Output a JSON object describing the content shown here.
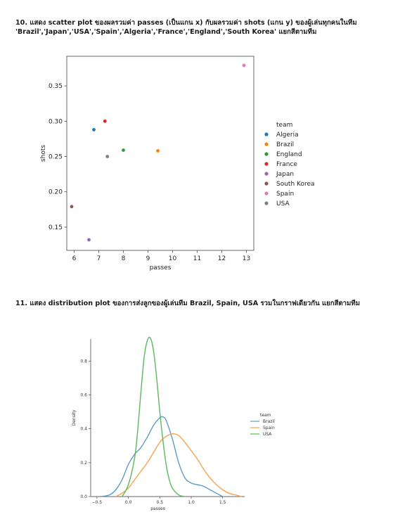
{
  "questions": {
    "q10": "10. แสดง scatter plot ของผลรวมค่า passes (เป็นแกน x) กับผลรวมค่า shots (แกน y) ของผู้เล่นทุกคนในทีม 'Brazil','Japan','USA','Spain','Algeria','France','England','South Korea' แยกสีตามทีม",
    "q11": "11. แสดง distribution plot ของการส่งลูกของผู้เล่นทีม Brazil, Spain, USA รวมในกราฟเดียวกัน แยกสีตามทีม"
  },
  "chart_data": [
    {
      "type": "scatter",
      "xlabel": "passes",
      "ylabel": "shots",
      "xlim": [
        5.7,
        13.3
      ],
      "ylim": [
        0.117,
        0.392
      ],
      "xticks": [
        6,
        7,
        8,
        9,
        10,
        11,
        12,
        13
      ],
      "yticks": [
        0.15,
        0.2,
        0.25,
        0.3,
        0.35
      ],
      "ytick_labels": [
        "0.15",
        "0.20",
        "0.25",
        "0.30",
        "0.35"
      ],
      "legend_title": "team",
      "legend_position": "right",
      "series": [
        {
          "name": "Algeria",
          "color": "#1f77b4",
          "x": 6.8,
          "y": 0.288
        },
        {
          "name": "Brazil",
          "color": "#ff7f0e",
          "x": 9.4,
          "y": 0.258
        },
        {
          "name": "England",
          "color": "#2ca02c",
          "x": 8.0,
          "y": 0.259
        },
        {
          "name": "France",
          "color": "#d62728",
          "x": 7.25,
          "y": 0.3
        },
        {
          "name": "Japan",
          "color": "#9467bd",
          "x": 6.6,
          "y": 0.132
        },
        {
          "name": "South Korea",
          "color": "#8c564b",
          "x": 5.9,
          "y": 0.179
        },
        {
          "name": "Spain",
          "color": "#e377c2",
          "x": 12.9,
          "y": 0.379
        },
        {
          "name": "USA",
          "color": "#7f7f7f",
          "x": 7.35,
          "y": 0.25
        }
      ]
    },
    {
      "type": "line",
      "xlabel": "passes",
      "ylabel": "Density",
      "xlim": [
        -0.6,
        1.85
      ],
      "ylim": [
        0,
        0.93
      ],
      "xticks": [
        -0.5,
        0.0,
        0.5,
        1.0,
        1.5
      ],
      "xtick_labels": [
        "−0.5",
        "0.0",
        "0.5",
        "1.0",
        "1.5"
      ],
      "yticks": [
        0.0,
        0.2,
        0.4,
        0.6,
        0.8
      ],
      "ytick_labels": [
        "0.0",
        "0.2",
        "0.4",
        "0.6",
        "0.8"
      ],
      "legend_title": "team",
      "legend_position": "right",
      "series": [
        {
          "name": "Brazil",
          "color": "#5c9bc9",
          "x": [
            -0.45,
            -0.3,
            -0.2,
            -0.1,
            0.0,
            0.1,
            0.2,
            0.3,
            0.4,
            0.5,
            0.55,
            0.6,
            0.7,
            0.8,
            0.9,
            1.0,
            1.1,
            1.2,
            1.3,
            1.4,
            1.5
          ],
          "y": [
            0.0,
            0.01,
            0.04,
            0.1,
            0.19,
            0.25,
            0.29,
            0.35,
            0.42,
            0.465,
            0.47,
            0.45,
            0.34,
            0.2,
            0.11,
            0.08,
            0.07,
            0.06,
            0.04,
            0.02,
            0.0
          ]
        },
        {
          "name": "Spain",
          "color": "#f5a44e",
          "x": [
            -0.2,
            -0.1,
            0.0,
            0.1,
            0.2,
            0.3,
            0.4,
            0.5,
            0.6,
            0.7,
            0.8,
            0.9,
            1.0,
            1.1,
            1.2,
            1.3,
            1.4,
            1.5,
            1.6,
            1.7,
            1.8
          ],
          "y": [
            0.0,
            0.02,
            0.05,
            0.1,
            0.15,
            0.2,
            0.26,
            0.32,
            0.355,
            0.37,
            0.36,
            0.32,
            0.27,
            0.22,
            0.16,
            0.11,
            0.07,
            0.04,
            0.02,
            0.01,
            0.0
          ]
        },
        {
          "name": "USA",
          "color": "#5cb85c",
          "x": [
            -0.1,
            0.0,
            0.1,
            0.15,
            0.2,
            0.25,
            0.3,
            0.35,
            0.4,
            0.45,
            0.5,
            0.55,
            0.6,
            0.65,
            0.7,
            0.8,
            0.9
          ],
          "y": [
            0.0,
            0.07,
            0.23,
            0.4,
            0.62,
            0.82,
            0.92,
            0.935,
            0.86,
            0.7,
            0.5,
            0.33,
            0.19,
            0.1,
            0.05,
            0.01,
            0.0
          ]
        }
      ]
    }
  ]
}
